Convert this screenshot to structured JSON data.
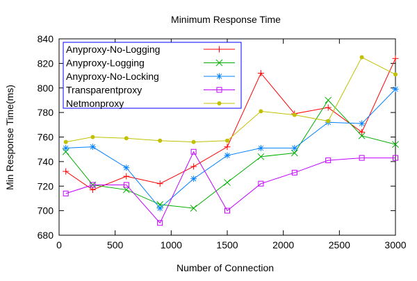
{
  "chart_data": {
    "type": "line",
    "title": "Minimum Response Time",
    "xlabel": "Number of Connection",
    "ylabel": "Min Response Time(ms)",
    "xlim": [
      0,
      3000
    ],
    "ylim": [
      680,
      840
    ],
    "xticks": [
      0,
      500,
      1000,
      1500,
      2000,
      2500,
      3000
    ],
    "yticks": [
      680,
      700,
      720,
      740,
      760,
      780,
      800,
      820,
      840
    ],
    "grid": false,
    "legend_position": "top-left",
    "x": [
      60,
      300,
      600,
      900,
      1200,
      1500,
      1800,
      2100,
      2400,
      2700,
      3000
    ],
    "series": [
      {
        "name": "Anyproxy-No-Logging",
        "color": "#ff0000",
        "marker": "plus",
        "values": [
          732,
          717,
          728,
          722,
          736,
          752,
          812,
          779,
          784,
          764,
          824
        ]
      },
      {
        "name": "Anyproxy-Logging",
        "color": "#00b000",
        "marker": "cross",
        "values": [
          748,
          721,
          717,
          705,
          702,
          723,
          744,
          747,
          790,
          761,
          754
        ]
      },
      {
        "name": "Anyproxy-No-Locking",
        "color": "#0080ff",
        "marker": "star",
        "values": [
          751,
          752,
          735,
          702,
          726,
          745,
          751,
          751,
          772,
          771,
          799
        ]
      },
      {
        "name": "Transparentproxy",
        "color": "#c000ff",
        "marker": "open-square",
        "values": [
          714,
          721,
          721,
          690,
          748,
          700,
          722,
          731,
          741,
          743,
          743
        ]
      },
      {
        "name": "Netmonproxy",
        "color": "#c0c000",
        "marker": "filled-circle",
        "values": [
          756,
          760,
          759,
          757,
          756,
          757,
          781,
          778,
          773,
          825,
          811
        ]
      }
    ]
  }
}
